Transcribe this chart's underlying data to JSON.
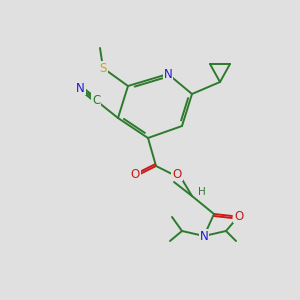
{
  "background_color": "#e0e0e0",
  "bond_color": "#2d7a2d",
  "atom_colors": {
    "N": "#1a1acc",
    "O": "#cc1a1a",
    "S": "#ccaa00",
    "C": "#2d7a2d",
    "H": "#2d7a2d"
  },
  "figsize": [
    3.0,
    3.0
  ],
  "dpi": 100
}
